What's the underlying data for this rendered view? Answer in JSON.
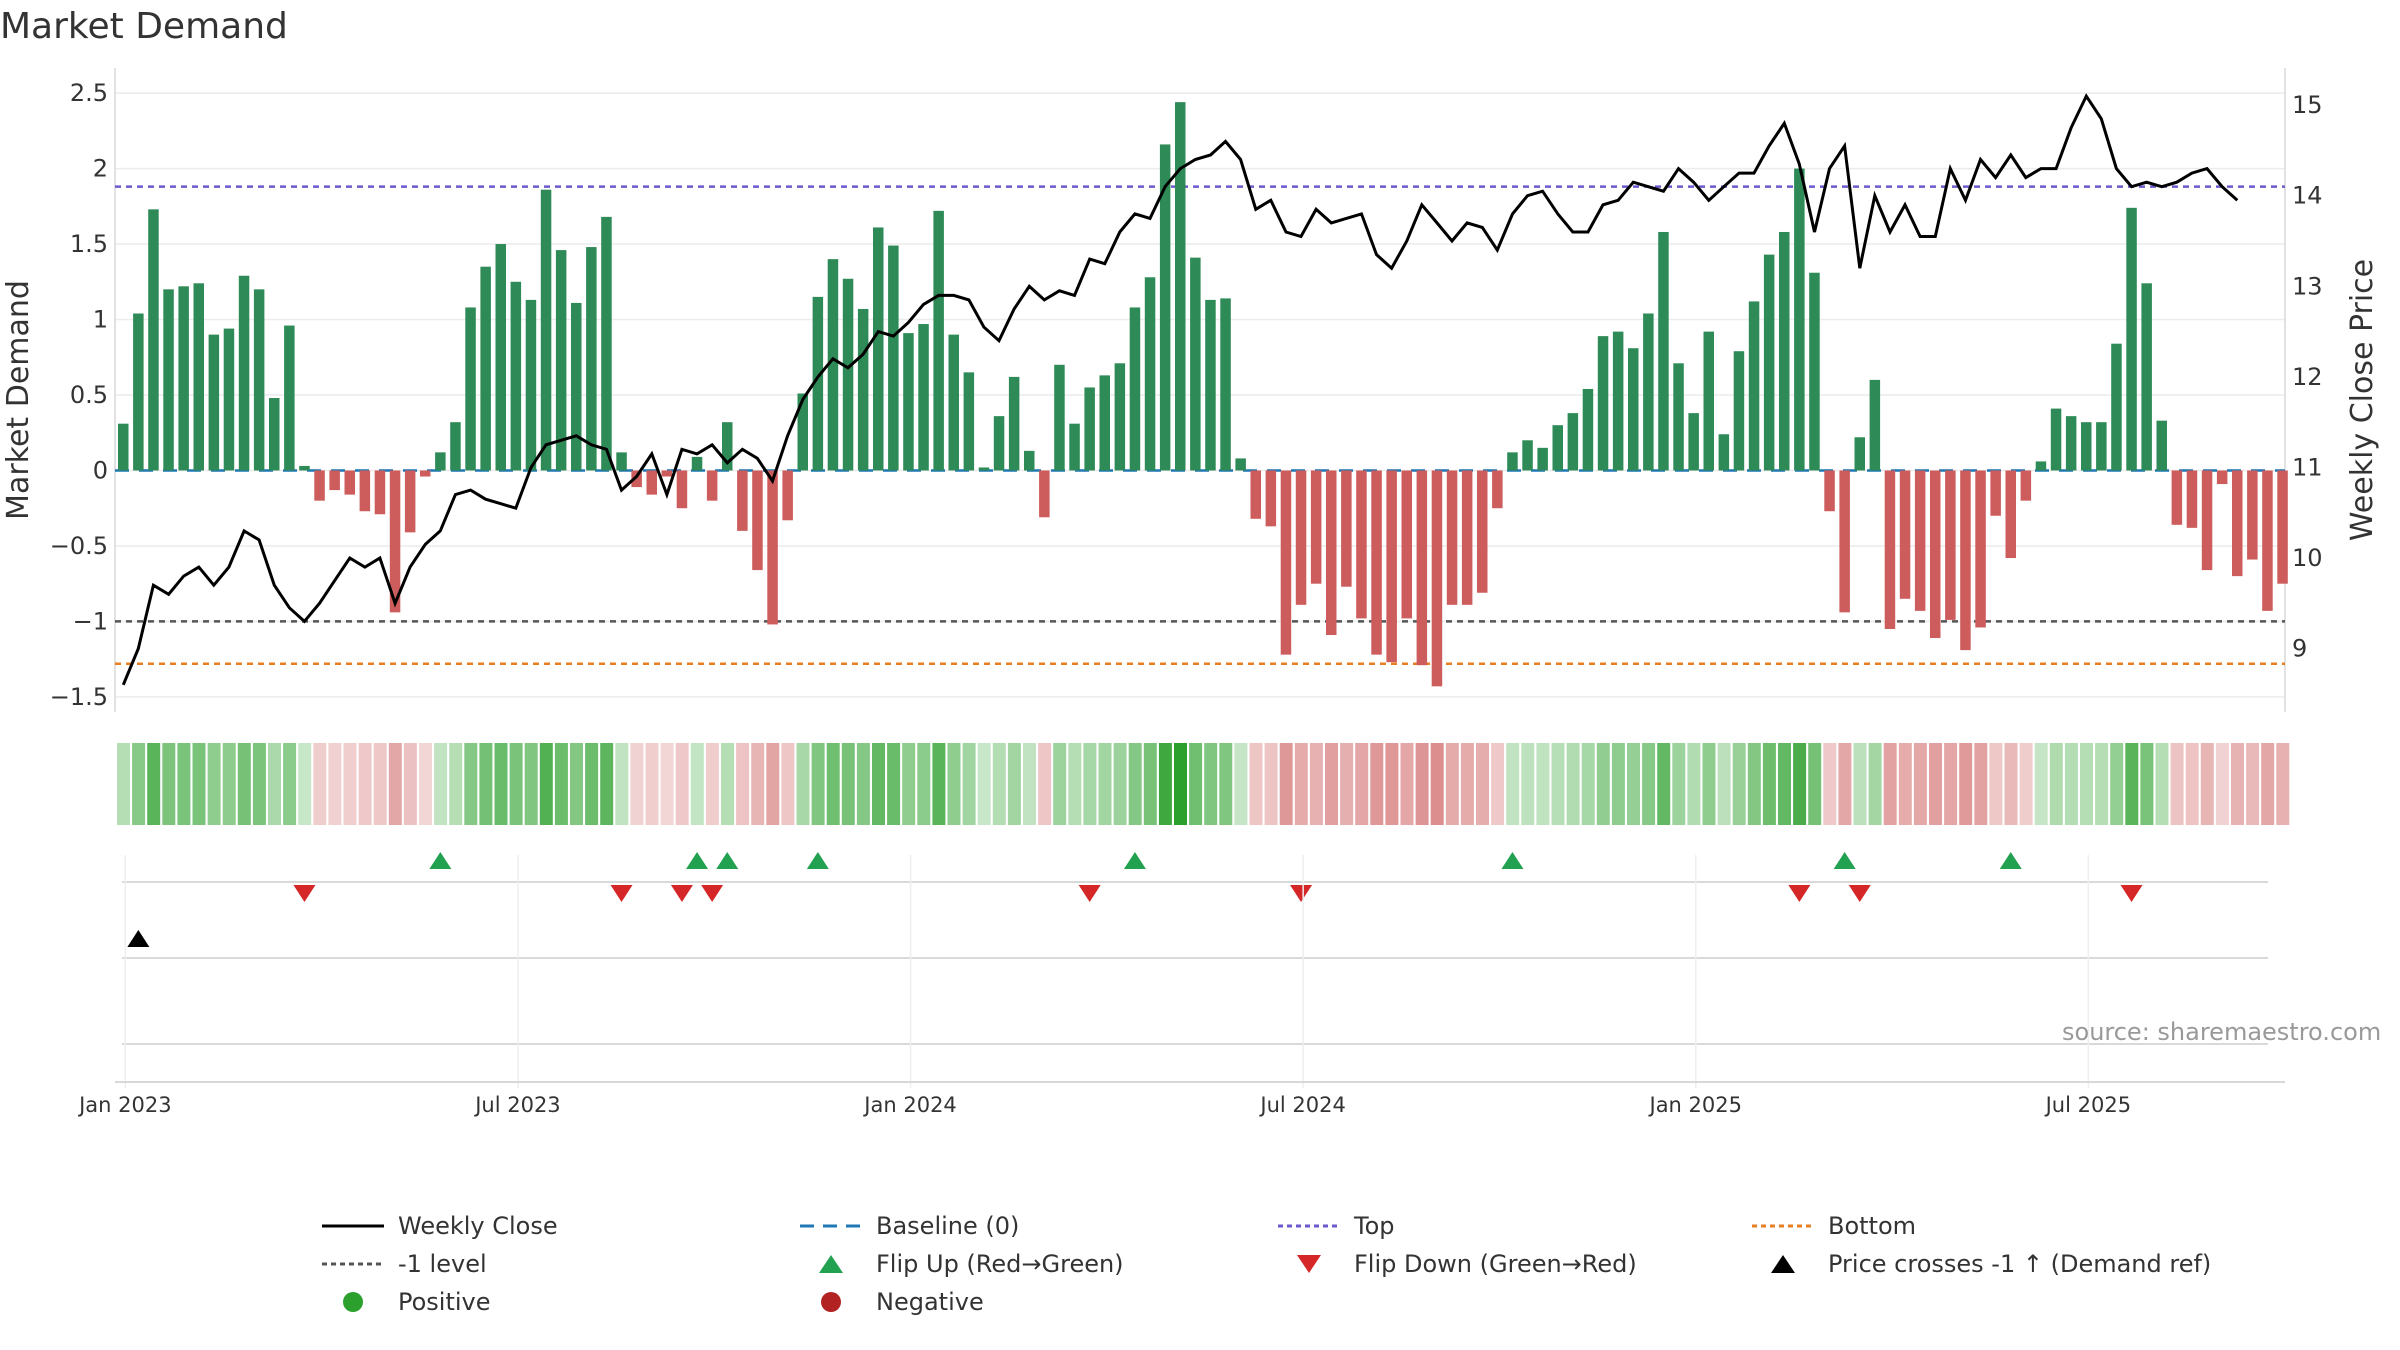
{
  "chart_data": {
    "type": "bar",
    "title": "Market Demand",
    "ylabel": "Market Demand",
    "y2label": "Weekly Close Price",
    "ylim": [
      -1.6,
      2.6
    ],
    "y2lim": [
      8.3,
      15.3
    ],
    "yticks": [
      "2.5",
      "2",
      "1.5",
      "1",
      "0.5",
      "0",
      "−0.5",
      "−1",
      "−1.5"
    ],
    "y2ticks": [
      "15",
      "14",
      "13",
      "12",
      "11",
      "10",
      "9"
    ],
    "xticks": [
      "Jan 2023",
      "Jul 2023",
      "Jan 2024",
      "Jul 2024",
      "Jan 2025",
      "Jul 2025"
    ],
    "reference_lines": {
      "top": 1.88,
      "bottom": -1.28,
      "minus_one": -1.0,
      "baseline": 0
    },
    "series": [
      {
        "name": "Market Demand",
        "values": [
          0.31,
          1.04,
          1.73,
          1.2,
          1.22,
          1.24,
          0.9,
          0.94,
          1.29,
          1.2,
          0.48,
          0.96,
          0.03,
          -0.2,
          -0.13,
          -0.16,
          -0.27,
          -0.29,
          -0.94,
          -0.41,
          -0.04,
          0.12,
          0.32,
          1.08,
          1.35,
          1.5,
          1.25,
          1.13,
          1.86,
          1.46,
          1.11,
          1.48,
          1.68,
          0.12,
          -0.11,
          -0.16,
          -0.04,
          -0.25,
          0.09,
          -0.2,
          0.32,
          -0.4,
          -0.66,
          -1.02,
          -0.33,
          0.51,
          1.15,
          1.4,
          1.27,
          1.07,
          1.61,
          1.49,
          0.91,
          0.97,
          1.72,
          0.9,
          0.65,
          0.02,
          0.36,
          0.62,
          0.13,
          -0.31,
          0.7,
          0.31,
          0.55,
          0.63,
          0.71,
          1.08,
          1.28,
          2.16,
          2.44,
          1.41,
          1.13,
          1.14,
          0.08,
          -0.32,
          -0.37,
          -1.22,
          -0.89,
          -0.75,
          -1.09,
          -0.77,
          -0.98,
          -1.22,
          -1.27,
          -0.98,
          -1.29,
          -1.43,
          -0.89,
          -0.89,
          -0.81,
          -0.25,
          0.12,
          0.2,
          0.15,
          0.3,
          0.38,
          0.54,
          0.89,
          0.92,
          0.81,
          1.04,
          1.58,
          0.71,
          0.38,
          0.92,
          0.24,
          0.79,
          1.12,
          1.43,
          1.58,
          2.0,
          1.31,
          -0.27,
          -0.94,
          0.22,
          0.6,
          -1.05,
          -0.85,
          -0.93,
          -1.11,
          -0.99,
          -1.19,
          -1.04,
          -0.3,
          -0.58,
          -0.2,
          0.06,
          0.41,
          0.36,
          0.32,
          0.32,
          0.84,
          1.74,
          1.24,
          0.33,
          -0.36,
          -0.38,
          -0.66,
          -0.09,
          -0.7,
          -0.59,
          -0.93,
          -0.75
        ]
      },
      {
        "name": "Weekly Close",
        "values": [
          8.6,
          9.0,
          9.7,
          9.6,
          9.8,
          9.9,
          9.7,
          9.9,
          10.3,
          10.2,
          9.7,
          9.45,
          9.3,
          9.5,
          9.75,
          10.0,
          9.9,
          10.0,
          9.5,
          9.9,
          10.15,
          10.3,
          10.7,
          10.75,
          10.65,
          10.6,
          10.55,
          11.0,
          11.25,
          11.3,
          11.35,
          11.25,
          11.2,
          10.75,
          10.9,
          11.15,
          10.7,
          11.2,
          11.15,
          11.25,
          11.05,
          11.2,
          11.1,
          10.85,
          11.35,
          11.75,
          12.0,
          12.2,
          12.1,
          12.25,
          12.5,
          12.45,
          12.6,
          12.8,
          12.9,
          12.9,
          12.85,
          12.55,
          12.4,
          12.75,
          13.0,
          12.85,
          12.95,
          12.9,
          13.3,
          13.25,
          13.6,
          13.8,
          13.75,
          14.1,
          14.3,
          14.4,
          14.45,
          14.6,
          14.4,
          13.85,
          13.95,
          13.6,
          13.55,
          13.85,
          13.7,
          13.75,
          13.8,
          13.35,
          13.2,
          13.5,
          13.9,
          13.7,
          13.5,
          13.7,
          13.65,
          13.4,
          13.8,
          14.0,
          14.05,
          13.8,
          13.6,
          13.6,
          13.9,
          13.95,
          14.15,
          14.1,
          14.05,
          14.3,
          14.15,
          13.95,
          14.1,
          14.25,
          14.25,
          14.55,
          14.8,
          14.35,
          13.6,
          14.3,
          14.55,
          13.2,
          14.0,
          13.6,
          13.9,
          13.55,
          13.55,
          14.3,
          13.95,
          14.4,
          14.2,
          14.45,
          14.2,
          14.3,
          14.3,
          14.75,
          15.1,
          14.85,
          14.3,
          14.1,
          14.15,
          14.1,
          14.15,
          14.25,
          14.3,
          14.1,
          13.95
        ]
      }
    ],
    "flip_up_weeks": [
      21,
      38,
      40,
      46,
      67,
      92,
      114,
      125
    ],
    "flip_down_weeks": [
      12,
      33,
      37,
      39,
      64,
      78,
      111,
      115,
      133
    ],
    "price_cross_weeks": [
      1
    ],
    "legend": [
      "Weekly Close",
      "Baseline (0)",
      "Top",
      "Bottom",
      "-1 level",
      "Flip Up (Red→Green)",
      "Flip Down (Green→Red)",
      "Price crosses -1 ↑ (Demand ref)",
      "Positive",
      "Negative"
    ],
    "source": "source: sharemaestro.com"
  },
  "colors": {
    "positive": "#2e8b57",
    "negative": "#cd5c5c",
    "close": "#000000",
    "baseline": "#1f77b4",
    "top": "#6a5acd",
    "bottom": "#e67e22",
    "minus_one": "#555555",
    "flip_up": "#22a150",
    "flip_down": "#d62728",
    "positive_dot": "#2ca02c",
    "negative_dot": "#b22222"
  }
}
